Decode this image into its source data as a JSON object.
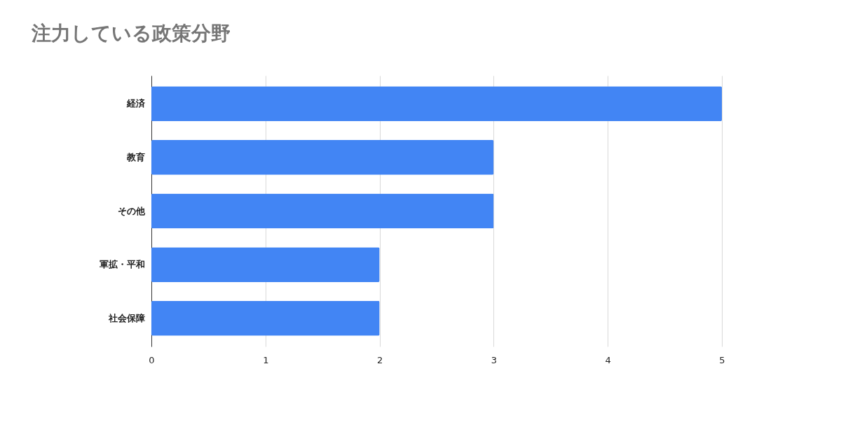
{
  "chart_data": {
    "type": "bar",
    "orientation": "horizontal",
    "title": "注力している政策分野",
    "categories": [
      "経済",
      "教育",
      "その他",
      "軍拡・平和",
      "社会保障"
    ],
    "values": [
      5,
      3,
      3,
      2,
      2
    ],
    "color": "#4285f4",
    "xlim": [
      0,
      5
    ],
    "xticks": [
      0,
      1,
      2,
      3,
      4,
      5
    ],
    "grid": "x"
  }
}
